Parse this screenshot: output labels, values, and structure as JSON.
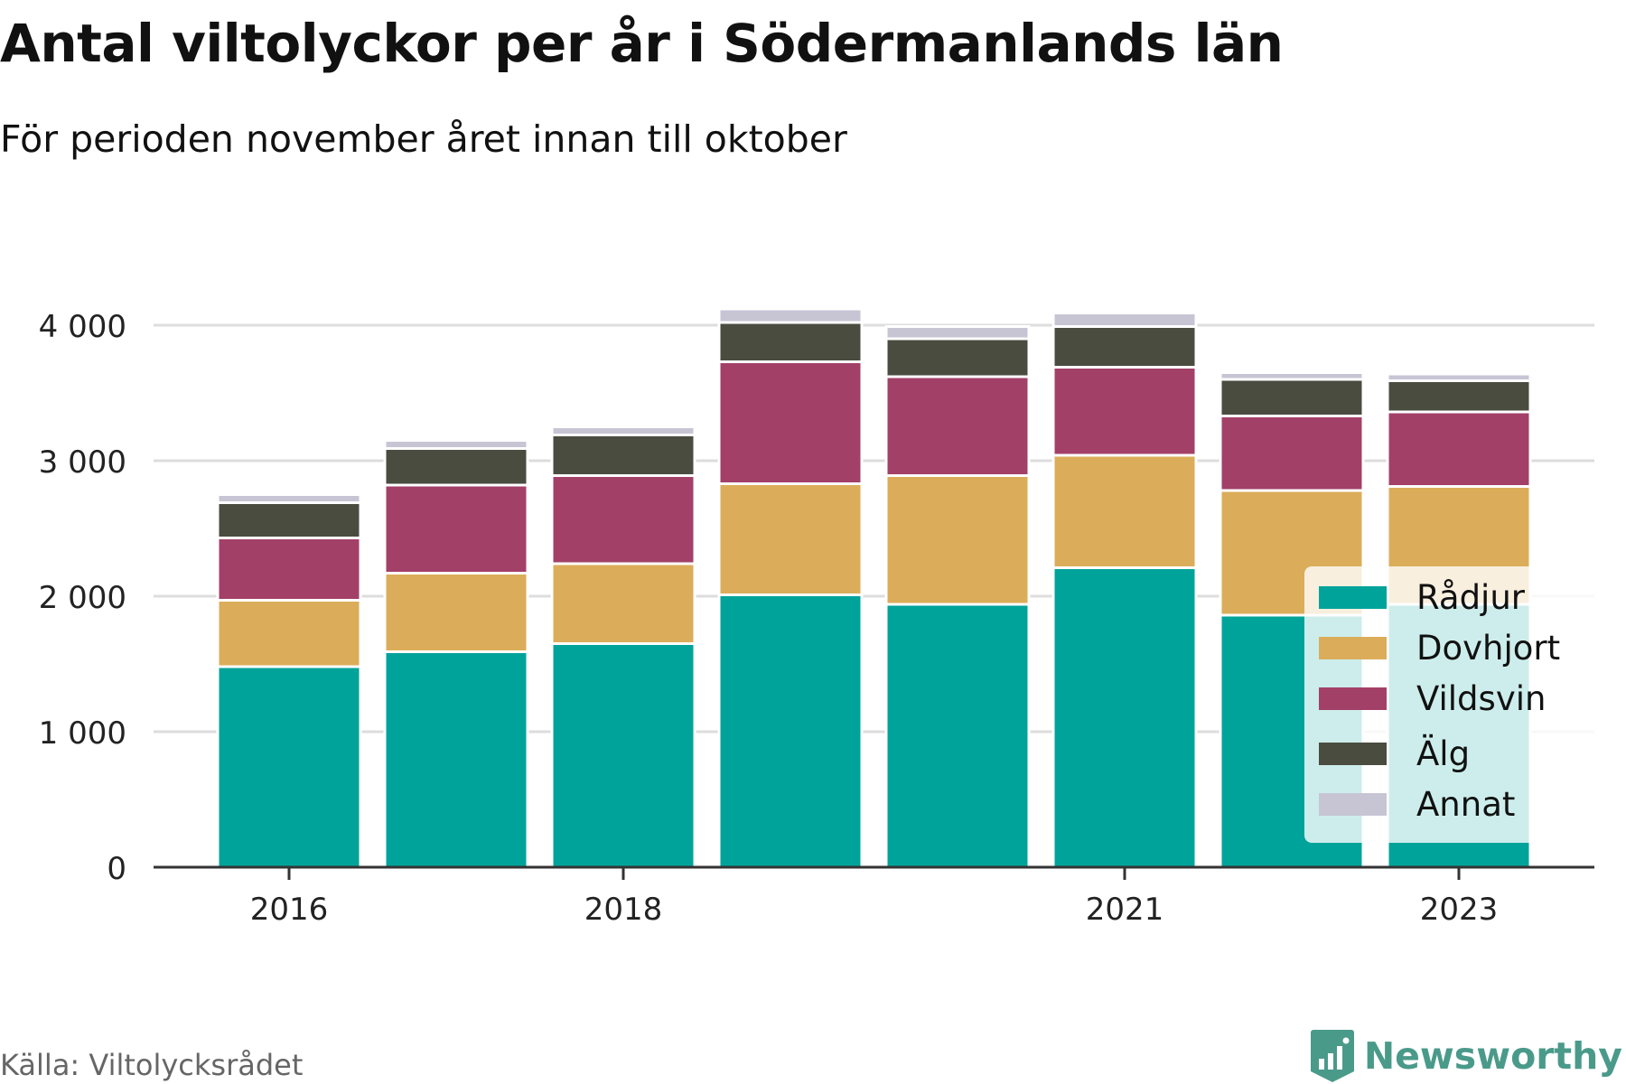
{
  "title": "Antal viltolyckor per år i Södermanlands län",
  "subtitle": "För perioden november året innan till oktober",
  "source": "Källa: Viltolycksrådet",
  "brand": "Newsworthy",
  "colors": {
    "Rådjur": "#00a39a",
    "Dovhjort": "#dbad5a",
    "Vildsvin": "#a34068",
    "Älg": "#4a4c40",
    "Annat": "#c7c5d4",
    "grid": "#dddddd",
    "axis": "#333333",
    "brand": "#4a9a8a"
  },
  "chart_data": {
    "type": "bar",
    "stacked": true,
    "categories": [
      "2016",
      "2017",
      "2018",
      "2019",
      "2020",
      "2021",
      "2022",
      "2023"
    ],
    "x_tick_labels": [
      "2016",
      "",
      "2018",
      "",
      "",
      "2021",
      "",
      "2023"
    ],
    "y_ticks": [
      0,
      1000,
      2000,
      3000,
      4000
    ],
    "y_tick_labels": [
      "0",
      "1 000",
      "2 000",
      "3 000",
      "4 000"
    ],
    "ylim": [
      0,
      4560
    ],
    "grid": true,
    "legend_position": "right",
    "series": [
      {
        "name": "Rådjur",
        "values": [
          1480,
          1590,
          1650,
          2010,
          1940,
          2210,
          1860,
          1940
        ]
      },
      {
        "name": "Dovhjort",
        "values": [
          490,
          580,
          590,
          820,
          950,
          830,
          920,
          870
        ]
      },
      {
        "name": "Vildsvin",
        "values": [
          460,
          650,
          650,
          900,
          730,
          650,
          550,
          550
        ]
      },
      {
        "name": "Älg",
        "values": [
          260,
          270,
          300,
          290,
          280,
          300,
          270,
          230
        ]
      },
      {
        "name": "Annat",
        "values": [
          60,
          60,
          60,
          100,
          90,
          100,
          50,
          50
        ]
      }
    ]
  }
}
